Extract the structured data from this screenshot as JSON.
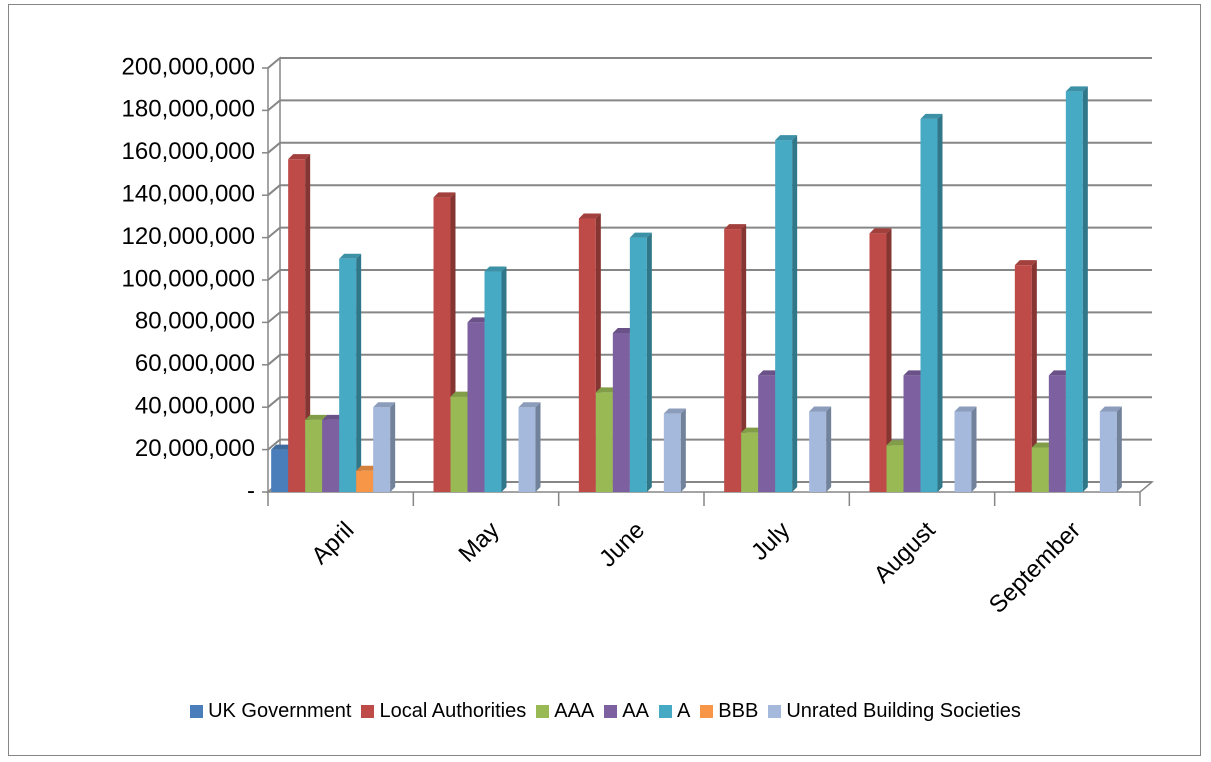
{
  "chart_data": {
    "type": "bar3d",
    "categories": [
      "April",
      "May",
      "June",
      "July",
      "August",
      "September"
    ],
    "series": [
      {
        "name": "UK Government",
        "color": "#4a7ebb",
        "values": [
          20000000,
          0,
          0,
          0,
          0,
          0
        ]
      },
      {
        "name": "Local Authorities",
        "color": "#be4b48",
        "values": [
          157000000,
          139000000,
          129000000,
          124000000,
          122000000,
          107000000
        ]
      },
      {
        "name": "AAA",
        "color": "#98b954",
        "values": [
          34000000,
          45000000,
          47000000,
          28000000,
          22000000,
          21000000
        ]
      },
      {
        "name": "AA",
        "color": "#7d60a0",
        "values": [
          34000000,
          80000000,
          75000000,
          55000000,
          55000000,
          55000000
        ]
      },
      {
        "name": "A",
        "color": "#46aac5",
        "values": [
          110000000,
          104000000,
          120000000,
          166000000,
          176000000,
          189000000
        ]
      },
      {
        "name": "BBB",
        "color": "#f79646",
        "values": [
          10000000,
          0,
          0,
          0,
          0,
          0
        ]
      },
      {
        "name": "Unrated Building Societies",
        "color": "#a5b9dd",
        "values": [
          40000000,
          40000000,
          37000000,
          38000000,
          38000000,
          38000000
        ]
      }
    ],
    "ylim": [
      0,
      200000000
    ],
    "yticks": [
      {
        "value": 0,
        "label": "-"
      },
      {
        "value": 20000000,
        "label": "20,000,000"
      },
      {
        "value": 40000000,
        "label": "40,000,000"
      },
      {
        "value": 60000000,
        "label": "60,000,000"
      },
      {
        "value": 80000000,
        "label": "80,000,000"
      },
      {
        "value": 100000000,
        "label": "100,000,000"
      },
      {
        "value": 120000000,
        "label": "120,000,000"
      },
      {
        "value": 140000000,
        "label": "140,000,000"
      },
      {
        "value": 160000000,
        "label": "160,000,000"
      },
      {
        "value": 180000000,
        "label": "180,000,000"
      },
      {
        "value": 200000000,
        "label": "200,000,000"
      }
    ],
    "grid": true,
    "legend": "bottom"
  }
}
